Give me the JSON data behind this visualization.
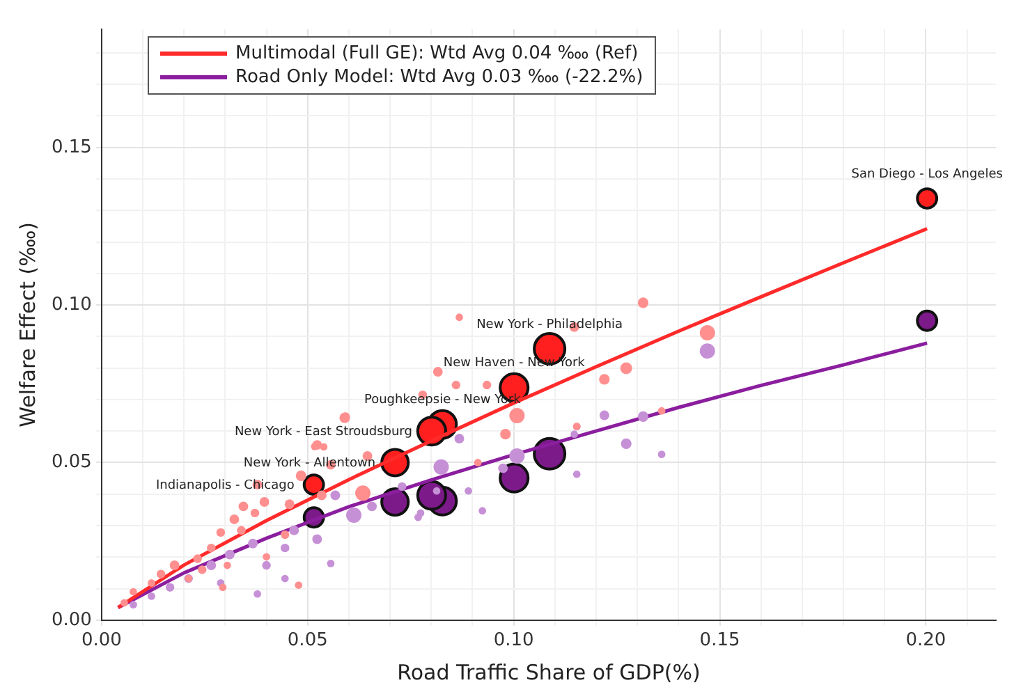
{
  "chart_data": {
    "type": "bubble",
    "xlabel": "Road Traffic Share of GDP(%)",
    "ylabel": "Welfare Effect (‱)",
    "xlim": [
      0,
      0.217
    ],
    "ylim": [
      0,
      0.1875
    ],
    "xticks": [
      {
        "value": 0,
        "label": "0.00"
      },
      {
        "value": 0.01,
        "label": null
      },
      {
        "value": 0.02,
        "label": null
      },
      {
        "value": 0.03,
        "label": null
      },
      {
        "value": 0.04,
        "label": null
      },
      {
        "value": 0.05,
        "label": "0.05"
      },
      {
        "value": 0.06,
        "label": null
      },
      {
        "value": 0.07,
        "label": null
      },
      {
        "value": 0.08,
        "label": null
      },
      {
        "value": 0.09,
        "label": null
      },
      {
        "value": 0.1,
        "label": "0.10"
      },
      {
        "value": 0.11,
        "label": null
      },
      {
        "value": 0.12,
        "label": null
      },
      {
        "value": 0.13,
        "label": null
      },
      {
        "value": 0.14,
        "label": null
      },
      {
        "value": 0.15,
        "label": "0.15"
      },
      {
        "value": 0.16,
        "label": null
      },
      {
        "value": 0.17,
        "label": null
      },
      {
        "value": 0.18,
        "label": null
      },
      {
        "value": 0.19,
        "label": null
      },
      {
        "value": 0.2,
        "label": "0.20"
      },
      {
        "value": 0.21,
        "label": null
      }
    ],
    "yticks": [
      {
        "value": 0,
        "label": "0.00"
      },
      {
        "value": 0.01,
        "label": null
      },
      {
        "value": 0.02,
        "label": null
      },
      {
        "value": 0.03,
        "label": null
      },
      {
        "value": 0.04,
        "label": null
      },
      {
        "value": 0.05,
        "label": "0.05"
      },
      {
        "value": 0.06,
        "label": null
      },
      {
        "value": 0.07,
        "label": null
      },
      {
        "value": 0.08,
        "label": null
      },
      {
        "value": 0.09,
        "label": null
      },
      {
        "value": 0.1,
        "label": "0.10"
      },
      {
        "value": 0.11,
        "label": null
      },
      {
        "value": 0.12,
        "label": null
      },
      {
        "value": 0.13,
        "label": null
      },
      {
        "value": 0.14,
        "label": null
      },
      {
        "value": 0.15,
        "label": "0.15"
      },
      {
        "value": 0.16,
        "label": null
      },
      {
        "value": 0.17,
        "label": null
      },
      {
        "value": 0.18,
        "label": null
      }
    ],
    "grid": true,
    "legend": "top left",
    "series": [
      {
        "type": "bubble",
        "color": "#ff8f8f",
        "x": [
          0.1314,
          0.147,
          0.1273,
          0.122,
          0.1147,
          0.1359,
          0.1153,
          0.0868,
          0.0816,
          0.0935,
          0.086,
          0.0779,
          0.1008,
          0.098,
          0.0592,
          0.0517,
          0.0539,
          0.0634,
          0.0913,
          0.059,
          0.0523,
          0.0645,
          0.0556,
          0.0484,
          0.0395,
          0.0344,
          0.0372,
          0.0322,
          0.0339,
          0.0289,
          0.0445,
          0.0266,
          0.0233,
          0.0177,
          0.0144,
          0.0121,
          0.0077,
          0.0055,
          0.0211,
          0.0305,
          0.0478,
          0.04,
          0.0294,
          0.0456,
          0.0244,
          0.0378,
          0.0534
        ],
        "values": [
          0.1007,
          0.0912,
          0.0799,
          0.0764,
          0.093,
          0.0664,
          0.0615,
          0.0961,
          0.0788,
          0.0746,
          0.0746,
          0.0715,
          0.0649,
          0.059,
          0.0646,
          0.0551,
          0.055,
          0.0403,
          0.05,
          0.0642,
          0.0556,
          0.0521,
          0.0493,
          0.0458,
          0.0375,
          0.0361,
          0.034,
          0.032,
          0.0285,
          0.0278,
          0.0271,
          0.0229,
          0.0195,
          0.0174,
          0.0146,
          0.0118,
          0.009,
          0.0055,
          0.0132,
          0.0174,
          0.0111,
          0.0201,
          0.0104,
          0.0368,
          0.016,
          0.043,
          0.0396
        ],
        "sizes": [
          0.12,
          0.25,
          0.15,
          0.12,
          0.1,
          0.06,
          0.06,
          0.06,
          0.1,
          0.08,
          0.08,
          0.08,
          0.25,
          0.12,
          0.08,
          0.06,
          0.06,
          0.25,
          0.06,
          0.12,
          0.1,
          0.1,
          0.1,
          0.12,
          0.1,
          0.1,
          0.08,
          0.1,
          0.08,
          0.08,
          0.08,
          0.08,
          0.08,
          0.1,
          0.08,
          0.06,
          0.06,
          0.06,
          0.06,
          0.06,
          0.06,
          0.06,
          0.06,
          0.1,
          0.08,
          0.1,
          0.1
        ]
      },
      {
        "type": "bubble",
        "color": "#c690d6",
        "x": [
          0.147,
          0.122,
          0.1314,
          0.1273,
          0.1359,
          0.1147,
          0.1153,
          0.1153,
          0.1008,
          0.0974,
          0.0824,
          0.0868,
          0.089,
          0.0774,
          0.0924,
          0.0729,
          0.0813,
          0.0768,
          0.0612,
          0.0656,
          0.0556,
          0.0445,
          0.0445,
          0.0378,
          0.0523,
          0.0367,
          0.0311,
          0.0266,
          0.04,
          0.0211,
          0.0166,
          0.0121,
          0.0077,
          0.0289,
          0.0567,
          0.0467
        ],
        "values": [
          0.0854,
          0.065,
          0.0646,
          0.056,
          0.0526,
          0.059,
          0.0614,
          0.0463,
          0.0521,
          0.0482,
          0.0486,
          0.0576,
          0.041,
          0.034,
          0.0347,
          0.0424,
          0.041,
          0.0326,
          0.0333,
          0.0361,
          0.018,
          0.0229,
          0.0132,
          0.0083,
          0.0257,
          0.0243,
          0.0208,
          0.0174,
          0.0174,
          0.0132,
          0.0104,
          0.0076,
          0.0049,
          0.0118,
          0.0396,
          0.0285
        ],
        "sizes": [
          0.25,
          0.1,
          0.12,
          0.12,
          0.06,
          0.06,
          0.06,
          0.06,
          0.25,
          0.1,
          0.25,
          0.1,
          0.06,
          0.06,
          0.06,
          0.08,
          0.06,
          0.06,
          0.25,
          0.1,
          0.06,
          0.08,
          0.06,
          0.06,
          0.1,
          0.1,
          0.1,
          0.1,
          0.08,
          0.08,
          0.08,
          0.06,
          0.06,
          0.06,
          0.1,
          0.1
        ]
      },
      {
        "type": "line",
        "name": "Multimodal (Full GE): Wtd Avg 0.04 ‱ (Ref)",
        "color": "#ff2a2a",
        "x": [
          0.004,
          0.02,
          0.04,
          0.06,
          0.08,
          0.1,
          0.12,
          0.14,
          0.16,
          0.18,
          0.2003
        ],
        "values": [
          0.004,
          0.0175,
          0.0316,
          0.0446,
          0.0569,
          0.0689,
          0.0804,
          0.0917,
          0.1026,
          0.1134,
          0.1242
        ]
      },
      {
        "type": "line",
        "name": "Road Only Model: Wtd Avg 0.03 ‱ (-22.2%)",
        "color": "#8b1e9e",
        "x": [
          0.004,
          0.02,
          0.04,
          0.06,
          0.08,
          0.1,
          0.12,
          0.14,
          0.16,
          0.18,
          0.2003
        ],
        "values": [
          0.004,
          0.015,
          0.026,
          0.036,
          0.0445,
          0.0525,
          0.06,
          0.0675,
          0.0745,
          0.081,
          0.0879
        ]
      },
      {
        "type": "bubble",
        "color": "#ff1f1f",
        "x": [
          0.2003,
          0.1087,
          0.1001,
          0.0827,
          0.0801,
          0.0712,
          0.0515
        ],
        "values": [
          0.1338,
          0.0861,
          0.0738,
          0.0621,
          0.06,
          0.05,
          0.043
        ],
        "sizes": [
          0.4,
          1,
          0.83,
          0.83,
          0.83,
          0.75,
          0.4
        ]
      },
      {
        "type": "bubble",
        "color": "#7d1a8a",
        "x": [
          0.2003,
          0.1087,
          0.1001,
          0.0827,
          0.0801,
          0.0712,
          0.0515
        ],
        "values": [
          0.095,
          0.0528,
          0.0451,
          0.0378,
          0.0396,
          0.0375,
          0.0326
        ],
        "sizes": [
          0.4,
          1,
          0.83,
          0.83,
          0.83,
          0.75,
          0.4
        ]
      }
    ],
    "annotations": [
      {
        "text": "San Diego - Los Angeles",
        "x": 0.2003,
        "y": 0.1338
      },
      {
        "text": "New York - Philadelphia",
        "x": 0.1087,
        "y": 0.0861
      },
      {
        "text": "New Haven - New York",
        "x": 0.1001,
        "y": 0.0738
      },
      {
        "text": "Poughkeepsie - New York",
        "x": 0.0827,
        "y": 0.0621
      },
      {
        "text": "New York - East Stroudsburg",
        "x": 0.0801,
        "y": 0.06
      },
      {
        "text": "New York - Allentown",
        "x": 0.0712,
        "y": 0.05
      },
      {
        "text": "Indianapolis - Chicago",
        "x": 0.0515,
        "y": 0.043
      }
    ]
  }
}
